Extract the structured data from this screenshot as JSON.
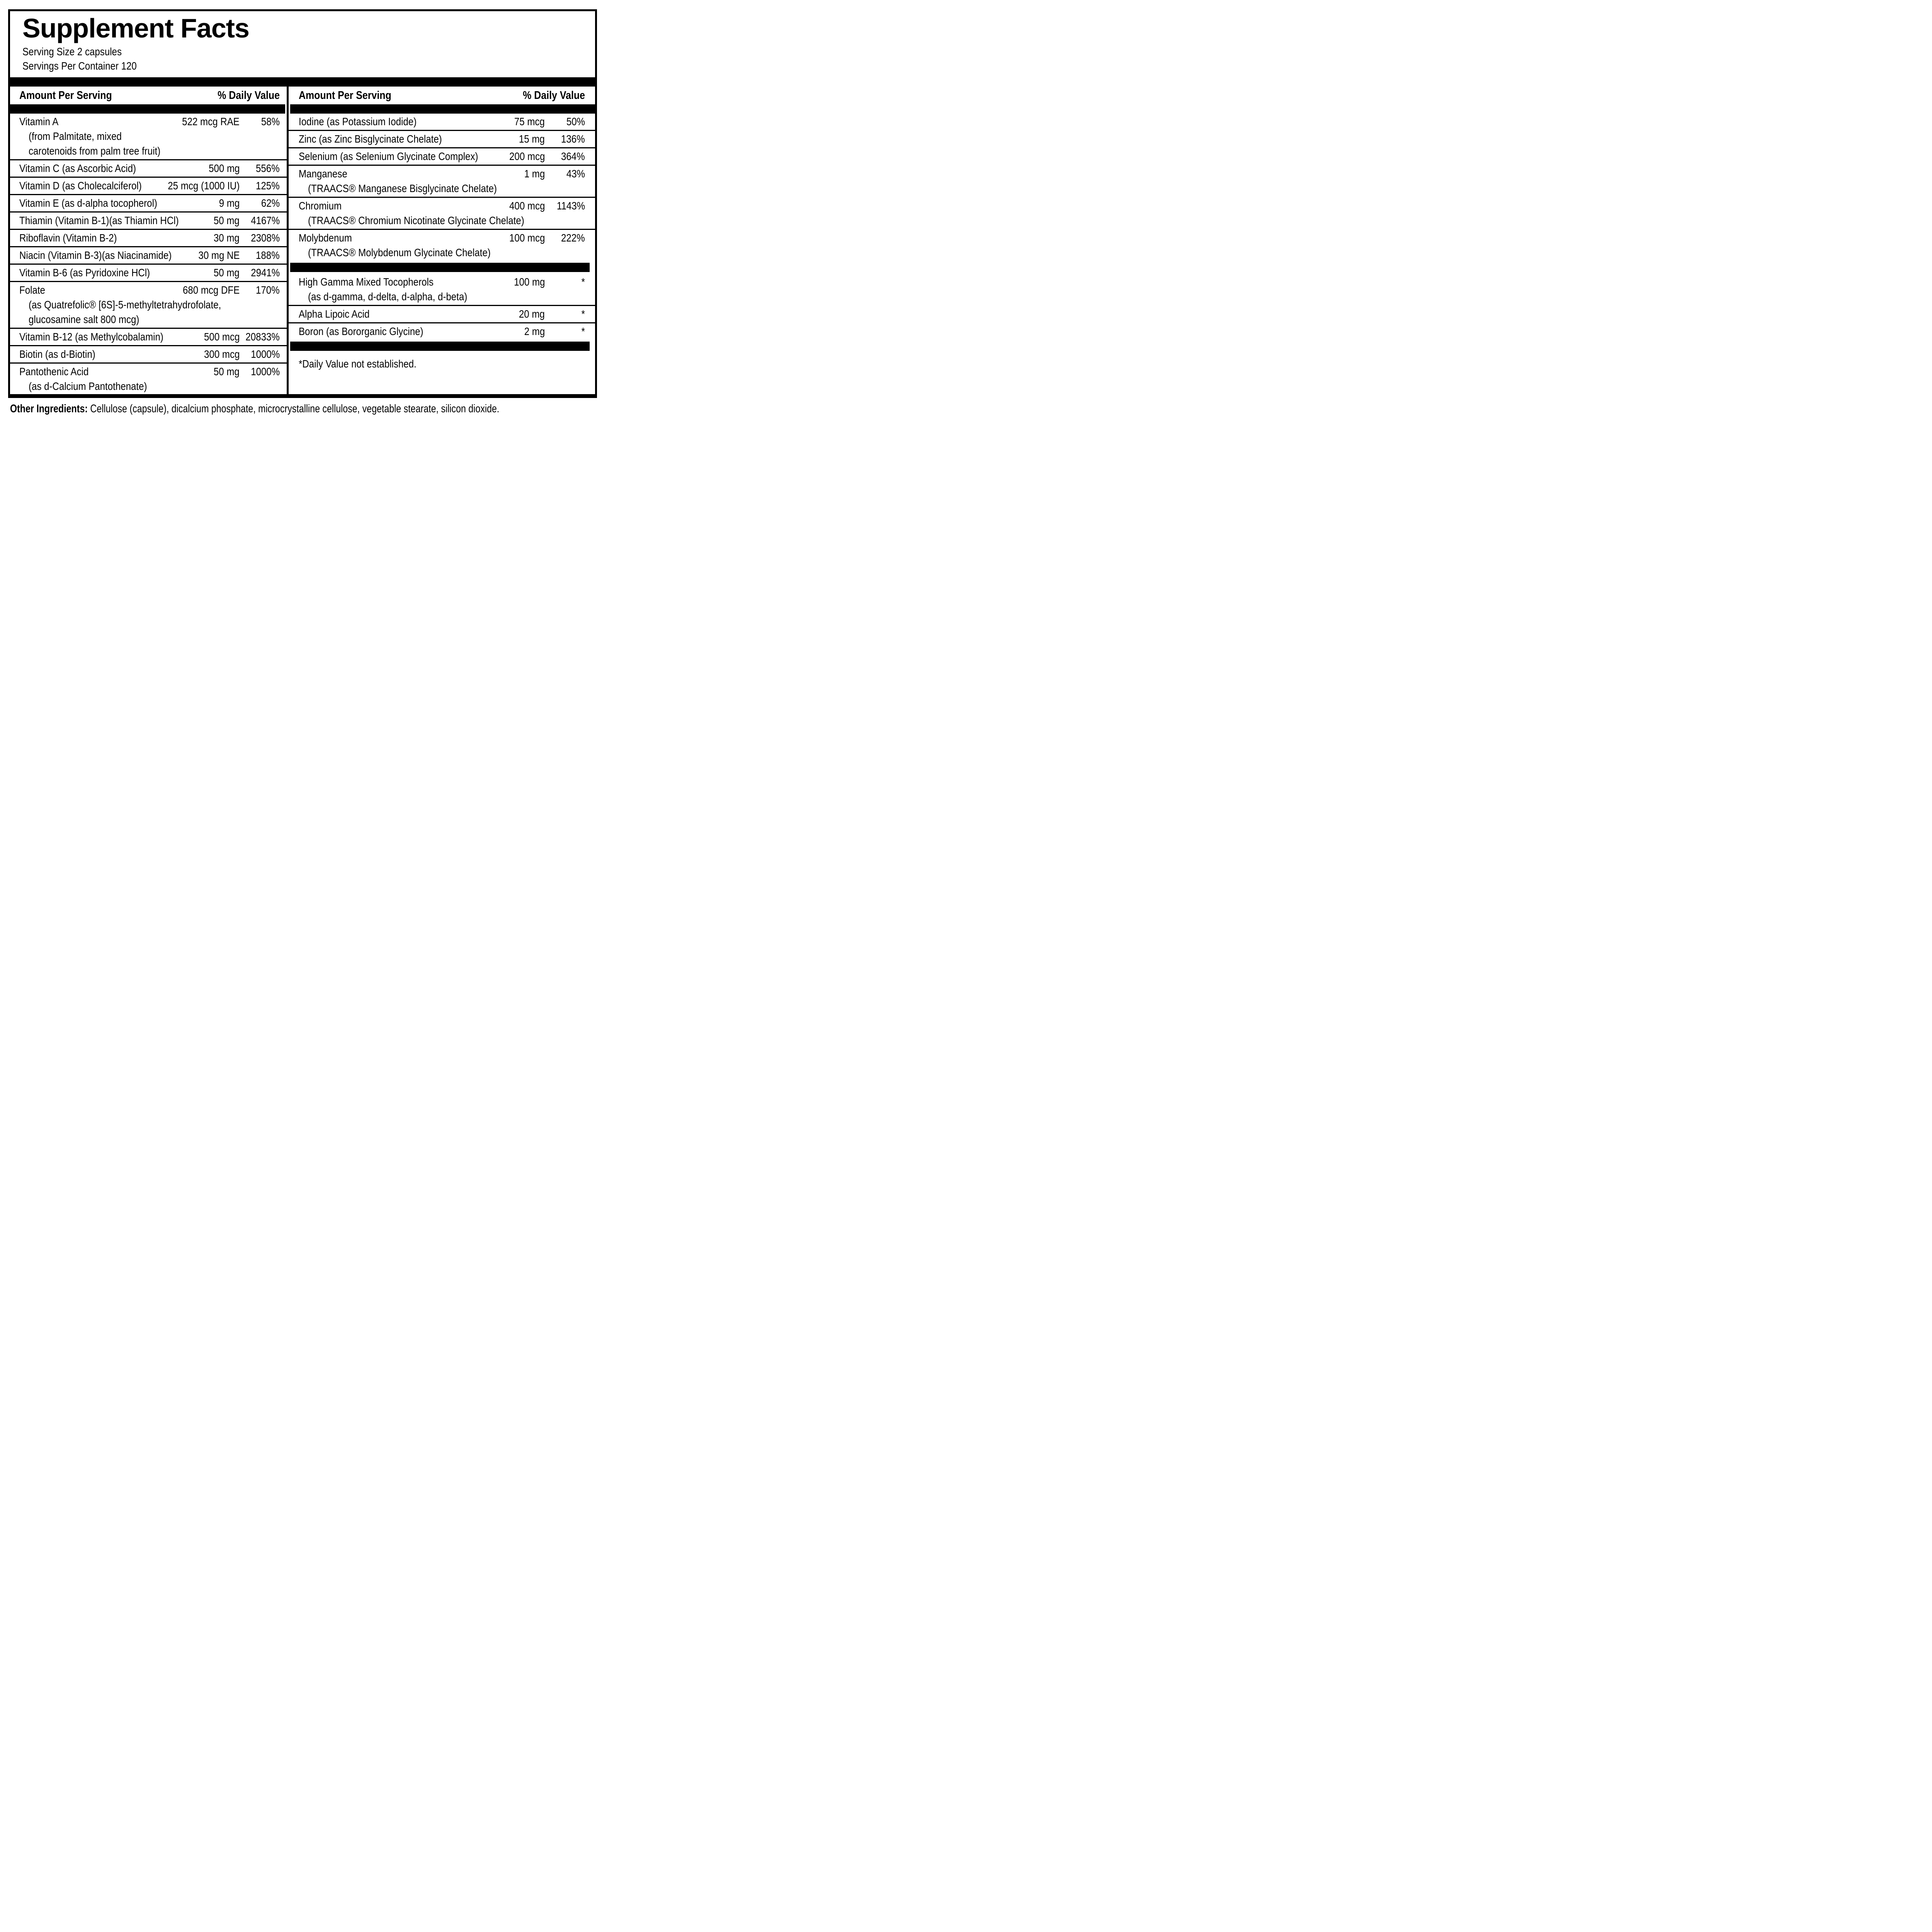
{
  "title": "Supplement Facts",
  "serving": {
    "size_line": "Serving Size 2 capsules",
    "per_container_line": "Servings Per Container 120"
  },
  "columns": {
    "header": {
      "amount_label": "Amount Per Serving",
      "dv_label": "% Daily Value"
    },
    "left": {
      "rows": [
        {
          "name": "Vitamin A",
          "amount": "522 mcg RAE",
          "dv": "58%",
          "sub": [
            "(from Palmitate, mixed",
            "carotenoids from palm tree fruit)"
          ],
          "sep_before": false,
          "bar_after": false
        },
        {
          "name": "Vitamin C (as Ascorbic Acid)",
          "amount": "500 mg",
          "dv": "556%",
          "sub": [],
          "sep_before": true,
          "bar_after": false
        },
        {
          "name": "Vitamin D (as Cholecalciferol)",
          "amount": "25 mcg (1000 IU)",
          "dv": "125%",
          "sub": [],
          "sep_before": true,
          "bar_after": false
        },
        {
          "name": "Vitamin E (as d-alpha tocopherol)",
          "amount": "9 mg",
          "dv": "62%",
          "sub": [],
          "sep_before": true,
          "bar_after": false
        },
        {
          "name": "Thiamin (Vitamin B-1)(as Thiamin HCl)",
          "amount": "50 mg",
          "dv": "4167%",
          "sub": [],
          "sep_before": true,
          "bar_after": false
        },
        {
          "name": "Riboflavin (Vitamin B-2)",
          "amount": "30 mg",
          "dv": "2308%",
          "sub": [],
          "sep_before": true,
          "bar_after": false
        },
        {
          "name": "Niacin (Vitamin B-3)(as Niacinamide)",
          "amount": "30 mg NE",
          "dv": "188%",
          "sub": [],
          "sep_before": true,
          "bar_after": false
        },
        {
          "name": "Vitamin B-6 (as Pyridoxine HCl)",
          "amount": "50 mg",
          "dv": "2941%",
          "sub": [],
          "sep_before": true,
          "bar_after": false
        },
        {
          "name": "Folate",
          "amount": "680 mcg DFE",
          "dv": "170%",
          "sub": [
            "(as Quatrefolic® [6S]-5-methyltetrahydrofolate,",
            "glucosamine salt 800 mcg)"
          ],
          "sep_before": true,
          "bar_after": false
        },
        {
          "name": "Vitamin B-12 (as Methylcobalamin)",
          "amount": "500 mcg",
          "dv": "20833%",
          "sub": [],
          "sep_before": true,
          "bar_after": false
        },
        {
          "name": "Biotin (as d-Biotin)",
          "amount": "300 mcg",
          "dv": "1000%",
          "sub": [],
          "sep_before": true,
          "bar_after": false
        },
        {
          "name": "Pantothenic Acid",
          "amount": "50 mg",
          "dv": "1000%",
          "sub": [
            "(as d-Calcium Pantothenate)"
          ],
          "sep_before": true,
          "bar_after": false
        }
      ]
    },
    "right": {
      "rows": [
        {
          "name": "Iodine (as Potassium Iodide)",
          "amount": "75 mcg",
          "dv": "50%",
          "sub": [],
          "sep_before": false,
          "bar_after": false
        },
        {
          "name": "Zinc (as Zinc Bisglycinate Chelate)",
          "amount": "15 mg",
          "dv": "136%",
          "sub": [],
          "sep_before": true,
          "bar_after": false
        },
        {
          "name": "Selenium (as Selenium Glycinate Complex)",
          "amount": "200 mcg",
          "dv": "364%",
          "sub": [],
          "sep_before": true,
          "bar_after": false
        },
        {
          "name": "Manganese",
          "amount": "1 mg",
          "dv": "43%",
          "sub": [
            "(TRAACS® Manganese Bisglycinate Chelate)"
          ],
          "sep_before": true,
          "bar_after": false
        },
        {
          "name": "Chromium",
          "amount": "400 mcg",
          "dv": "1143%",
          "sub": [
            "(TRAACS® Chromium Nicotinate Glycinate Chelate)"
          ],
          "sep_before": true,
          "bar_after": false
        },
        {
          "name": "Molybdenum",
          "amount": "100 mcg",
          "dv": "222%",
          "sub": [
            "(TRAACS® Molybdenum Glycinate Chelate)"
          ],
          "sep_before": true,
          "bar_after": true
        },
        {
          "name": "High Gamma Mixed Tocopherols",
          "amount": "100 mg",
          "dv": "*",
          "sub": [
            "(as d-gamma, d-delta, d-alpha, d-beta)"
          ],
          "sep_before": false,
          "bar_after": false
        },
        {
          "name": "Alpha Lipoic Acid",
          "amount": "20 mg",
          "dv": "*",
          "sub": [],
          "sep_before": true,
          "bar_after": false
        },
        {
          "name": "Boron (as Bororganic Glycine)",
          "amount": "2 mg",
          "dv": "*",
          "sub": [],
          "sep_before": true,
          "bar_after": true
        }
      ],
      "footnote": "*Daily Value not established."
    }
  },
  "other_ingredients": {
    "label": "Other Ingredients:",
    "text": " Cellulose (capsule), dicalcium phosphate, microcrystalline cellulose, vegetable stearate, silicon dioxide."
  },
  "colors": {
    "ink": "#000000",
    "paper": "#ffffff"
  }
}
